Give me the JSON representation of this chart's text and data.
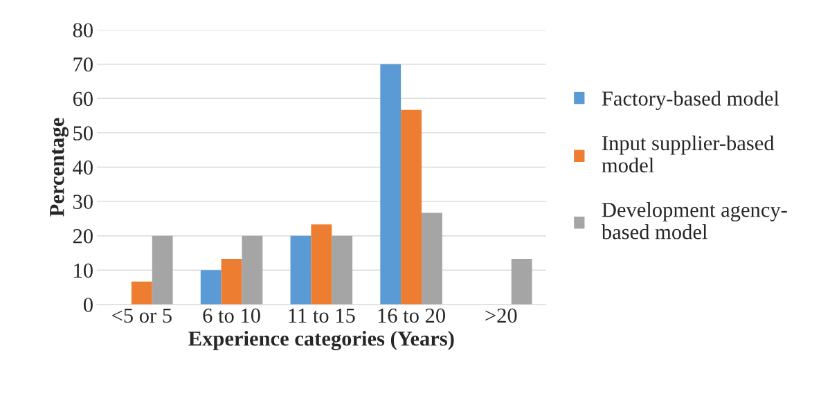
{
  "chart_data": {
    "type": "bar",
    "xlabel": "Experience categories (Years)",
    "ylabel": "Percentage",
    "categories": [
      "<5 or 5",
      "6 to 10",
      "11 to 15",
      "16 to 20",
      ">20"
    ],
    "series": [
      {
        "name": "Factory-based model",
        "color": "#5b9bd5",
        "values": [
          null,
          10,
          20,
          70,
          null
        ]
      },
      {
        "name": "Input supplier-based\nmodel",
        "color": "#ed7d31",
        "values": [
          6.7,
          13.3,
          23.3,
          56.7,
          null
        ]
      },
      {
        "name": "Development agency-\nbased model",
        "color": "#a5a5a5",
        "values": [
          20,
          20,
          20,
          26.7,
          13.3
        ]
      }
    ],
    "ylim": [
      0,
      80
    ],
    "yticks": [
      0,
      10,
      20,
      30,
      40,
      50,
      60,
      70,
      80
    ],
    "grid": "y",
    "legend": "right"
  }
}
